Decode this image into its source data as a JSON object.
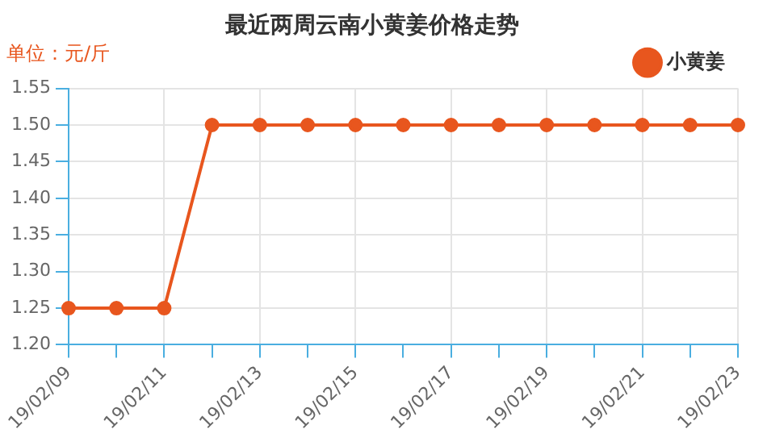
{
  "chart_data": {
    "type": "line",
    "title": "最近两周云南小黄姜价格走势",
    "ylabel": "单位：元/斤",
    "categories": [
      "19/02/09",
      null,
      "19/02/11",
      null,
      "19/02/13",
      null,
      "19/02/15",
      null,
      "19/02/17",
      null,
      "19/02/19",
      null,
      "19/02/21",
      null,
      "19/02/23"
    ],
    "series": [
      {
        "name": "小黄姜",
        "color": "#e8561e",
        "values": [
          1.25,
          1.25,
          1.25,
          1.5,
          1.5,
          1.5,
          1.5,
          1.5,
          1.5,
          1.5,
          1.5,
          1.5,
          1.5,
          1.5,
          1.5
        ]
      }
    ],
    "ylim": [
      1.2,
      1.55
    ],
    "yticks": [
      {
        "value": 1.2,
        "label": "1.20"
      },
      {
        "value": 1.25,
        "label": "1.25"
      },
      {
        "value": 1.3,
        "label": "1.30"
      },
      {
        "value": 1.35,
        "label": "1.35"
      },
      {
        "value": 1.4,
        "label": "1.40"
      },
      {
        "value": 1.45,
        "label": "1.45"
      },
      {
        "value": 1.5,
        "label": "1.50"
      },
      {
        "value": 1.55,
        "label": "1.55"
      }
    ],
    "grid": true,
    "legend": "top right",
    "marker": "circle",
    "line_style": "solid"
  }
}
